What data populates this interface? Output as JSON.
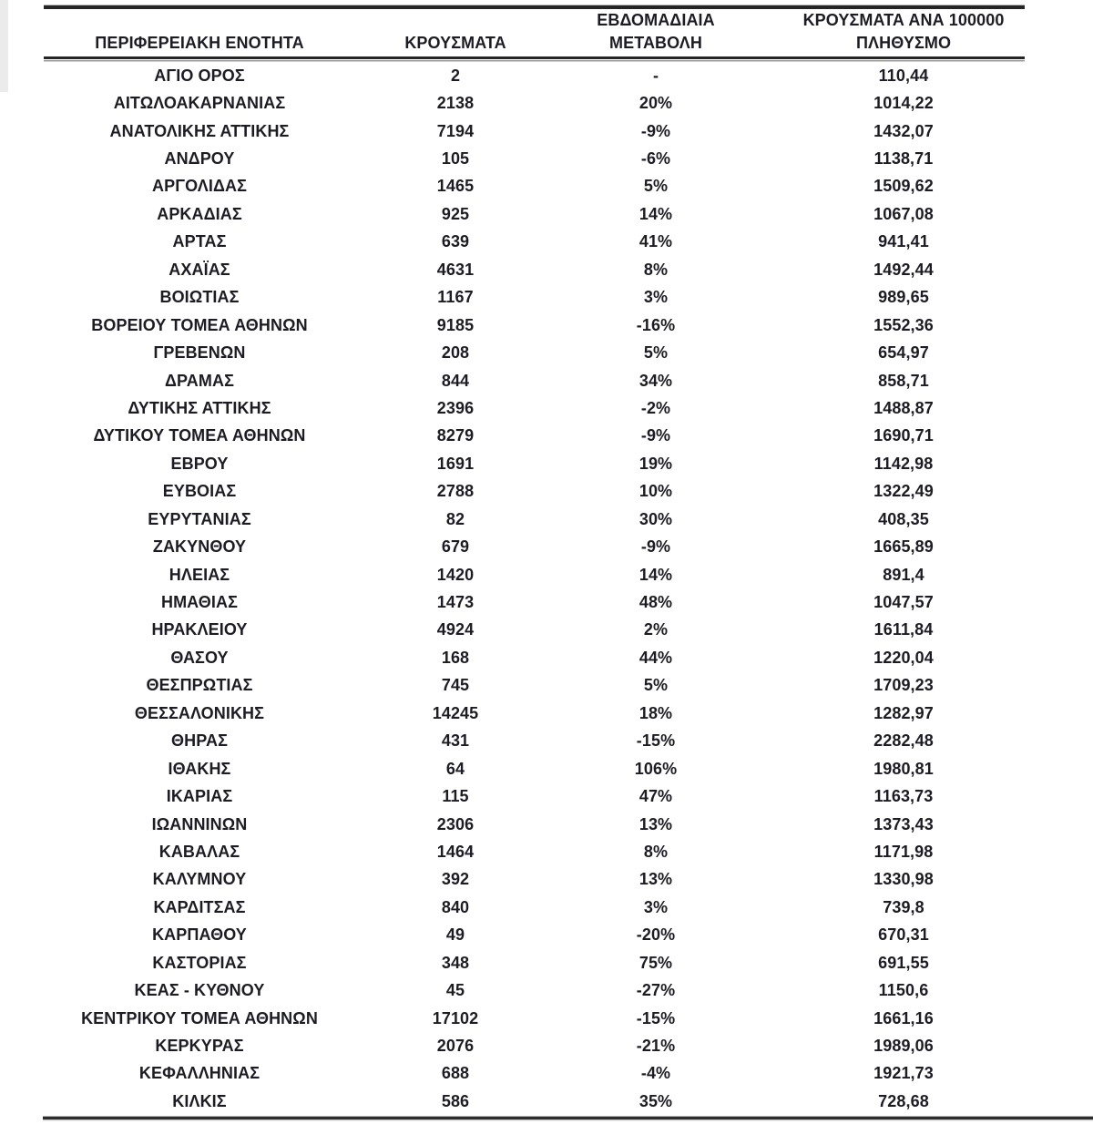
{
  "page": {
    "background": "#ffffff",
    "text_color": "#1c1c24",
    "rule_color": "#252525"
  },
  "table": {
    "columns": [
      {
        "id": "region",
        "line1": "",
        "line2": "ΠΕΡΙΦΕΡΕΙΑΚΗ ΕΝΟΤΗΤΑ"
      },
      {
        "id": "cases",
        "line1": "",
        "line2": "ΚΡΟΥΣΜΑΤΑ"
      },
      {
        "id": "change",
        "line1": "ΕΒΔΟΜΑΔΙΑΙΑ",
        "line2": "ΜΕΤΑΒΟΛΗ"
      },
      {
        "id": "rate",
        "line1": "ΚΡΟΥΣΜΑΤΑ ΑΝΑ 100000",
        "line2": "ΠΛΗΘΥΣΜΟ"
      }
    ],
    "rows": [
      {
        "region": "ΑΓΙΟ ΟΡΟΣ",
        "cases": "2",
        "change": "-",
        "rate": "110,44"
      },
      {
        "region": "ΑΙΤΩΛΟΑΚΑΡΝΑΝΙΑΣ",
        "cases": "2138",
        "change": "20%",
        "rate": "1014,22"
      },
      {
        "region": "ΑΝΑΤΟΛΙΚΗΣ ΑΤΤΙΚΗΣ",
        "cases": "7194",
        "change": "-9%",
        "rate": "1432,07"
      },
      {
        "region": "ΑΝΔΡΟΥ",
        "cases": "105",
        "change": "-6%",
        "rate": "1138,71"
      },
      {
        "region": "ΑΡΓΟΛΙΔΑΣ",
        "cases": "1465",
        "change": "5%",
        "rate": "1509,62"
      },
      {
        "region": "ΑΡΚΑΔΙΑΣ",
        "cases": "925",
        "change": "14%",
        "rate": "1067,08"
      },
      {
        "region": "ΑΡΤΑΣ",
        "cases": "639",
        "change": "41%",
        "rate": "941,41"
      },
      {
        "region": "ΑΧΑΪΑΣ",
        "cases": "4631",
        "change": "8%",
        "rate": "1492,44"
      },
      {
        "region": "ΒΟΙΩΤΙΑΣ",
        "cases": "1167",
        "change": "3%",
        "rate": "989,65"
      },
      {
        "region": "ΒΟΡΕΙΟΥ ΤΟΜΕΑ ΑΘΗΝΩΝ",
        "cases": "9185",
        "change": "-16%",
        "rate": "1552,36"
      },
      {
        "region": "ΓΡΕΒΕΝΩΝ",
        "cases": "208",
        "change": "5%",
        "rate": "654,97"
      },
      {
        "region": "ΔΡΑΜΑΣ",
        "cases": "844",
        "change": "34%",
        "rate": "858,71"
      },
      {
        "region": "ΔΥΤΙΚΗΣ ΑΤΤΙΚΗΣ",
        "cases": "2396",
        "change": "-2%",
        "rate": "1488,87"
      },
      {
        "region": "ΔΥΤΙΚΟΥ ΤΟΜΕΑ ΑΘΗΝΩΝ",
        "cases": "8279",
        "change": "-9%",
        "rate": "1690,71"
      },
      {
        "region": "ΕΒΡΟΥ",
        "cases": "1691",
        "change": "19%",
        "rate": "1142,98"
      },
      {
        "region": "ΕΥΒΟΙΑΣ",
        "cases": "2788",
        "change": "10%",
        "rate": "1322,49"
      },
      {
        "region": "ΕΥΡΥΤΑΝΙΑΣ",
        "cases": "82",
        "change": "30%",
        "rate": "408,35"
      },
      {
        "region": "ΖΑΚΥΝΘΟΥ",
        "cases": "679",
        "change": "-9%",
        "rate": "1665,89"
      },
      {
        "region": "ΗΛΕΙΑΣ",
        "cases": "1420",
        "change": "14%",
        "rate": "891,4"
      },
      {
        "region": "ΗΜΑΘΙΑΣ",
        "cases": "1473",
        "change": "48%",
        "rate": "1047,57"
      },
      {
        "region": "ΗΡΑΚΛΕΙΟΥ",
        "cases": "4924",
        "change": "2%",
        "rate": "1611,84"
      },
      {
        "region": "ΘΑΣΟΥ",
        "cases": "168",
        "change": "44%",
        "rate": "1220,04"
      },
      {
        "region": "ΘΕΣΠΡΩΤΙΑΣ",
        "cases": "745",
        "change": "5%",
        "rate": "1709,23"
      },
      {
        "region": "ΘΕΣΣΑΛΟΝΙΚΗΣ",
        "cases": "14245",
        "change": "18%",
        "rate": "1282,97"
      },
      {
        "region": "ΘΗΡΑΣ",
        "cases": "431",
        "change": "-15%",
        "rate": "2282,48"
      },
      {
        "region": "ΙΘΑΚΗΣ",
        "cases": "64",
        "change": "106%",
        "rate": "1980,81"
      },
      {
        "region": "ΙΚΑΡΙΑΣ",
        "cases": "115",
        "change": "47%",
        "rate": "1163,73"
      },
      {
        "region": "ΙΩΑΝΝΙΝΩΝ",
        "cases": "2306",
        "change": "13%",
        "rate": "1373,43"
      },
      {
        "region": "ΚΑΒΑΛΑΣ",
        "cases": "1464",
        "change": "8%",
        "rate": "1171,98"
      },
      {
        "region": "ΚΑΛΥΜΝΟΥ",
        "cases": "392",
        "change": "13%",
        "rate": "1330,98"
      },
      {
        "region": "ΚΑΡΔΙΤΣΑΣ",
        "cases": "840",
        "change": "3%",
        "rate": "739,8"
      },
      {
        "region": "ΚΑΡΠΑΘΟΥ",
        "cases": "49",
        "change": "-20%",
        "rate": "670,31"
      },
      {
        "region": "ΚΑΣΤΟΡΙΑΣ",
        "cases": "348",
        "change": "75%",
        "rate": "691,55"
      },
      {
        "region": "ΚΕΑΣ - ΚΥΘΝΟΥ",
        "cases": "45",
        "change": "-27%",
        "rate": "1150,6"
      },
      {
        "region": "ΚΕΝΤΡΙΚΟΥ ΤΟΜΕΑ ΑΘΗΝΩΝ",
        "cases": "17102",
        "change": "-15%",
        "rate": "1661,16"
      },
      {
        "region": "ΚΕΡΚΥΡΑΣ",
        "cases": "2076",
        "change": "-21%",
        "rate": "1989,06"
      },
      {
        "region": "ΚΕΦΑΛΛΗΝΙΑΣ",
        "cases": "688",
        "change": "-4%",
        "rate": "1921,73"
      },
      {
        "region": "ΚΙΛΚΙΣ",
        "cases": "586",
        "change": "35%",
        "rate": "728,68"
      }
    ]
  }
}
